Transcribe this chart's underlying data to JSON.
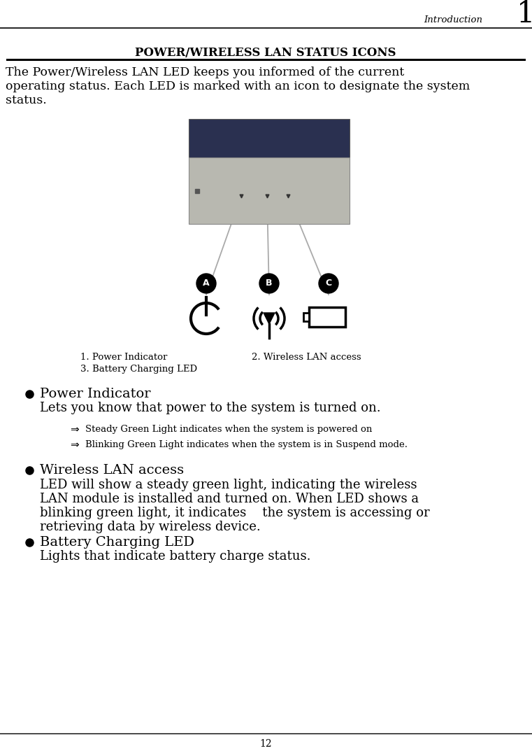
{
  "page_title_text": "Introduction",
  "page_number": "1",
  "page_num_bottom": "12",
  "section_title": "POWER/WIRELESS LAN STATUS ICONS",
  "intro_text_line1": "The Power/Wireless LAN LED keeps you informed of the current",
  "intro_text_line2": "operating status. Each LED is marked with an icon to designate the system",
  "intro_text_line3": "status.",
  "caption1": "1. Power Indicator",
  "caption2": "2. Wireless LAN access",
  "caption3": "3. Battery Charging LED",
  "bullet1_title": "Power Indicator",
  "bullet1_text": "Lets you know that power to the system is turned on.",
  "arrow1_text": "Steady Green Light indicates when the system is powered on",
  "arrow2_text": "Blinking Green Light indicates when the system is in Suspend mode.",
  "bullet2_title": "Wireless LAN access",
  "bullet2_text_line1": "LED will show a steady green light, indicating the wireless",
  "bullet2_text_line2": "LAN module is installed and turned on. When LED shows a",
  "bullet2_text_line3": "blinking green light, it indicates    the system is accessing or",
  "bullet2_text_line4": "retrieving data by wireless device.",
  "bullet3_title": "Battery Charging LED",
  "bullet3_text": "Lights that indicate battery charge status.",
  "bg_color": "#ffffff",
  "text_color": "#000000",
  "img_dark_color": "#2a3050",
  "img_silver_color": "#b8b8b0",
  "img_silver_dark": "#a0a098",
  "gray_line": "#aaaaaa"
}
